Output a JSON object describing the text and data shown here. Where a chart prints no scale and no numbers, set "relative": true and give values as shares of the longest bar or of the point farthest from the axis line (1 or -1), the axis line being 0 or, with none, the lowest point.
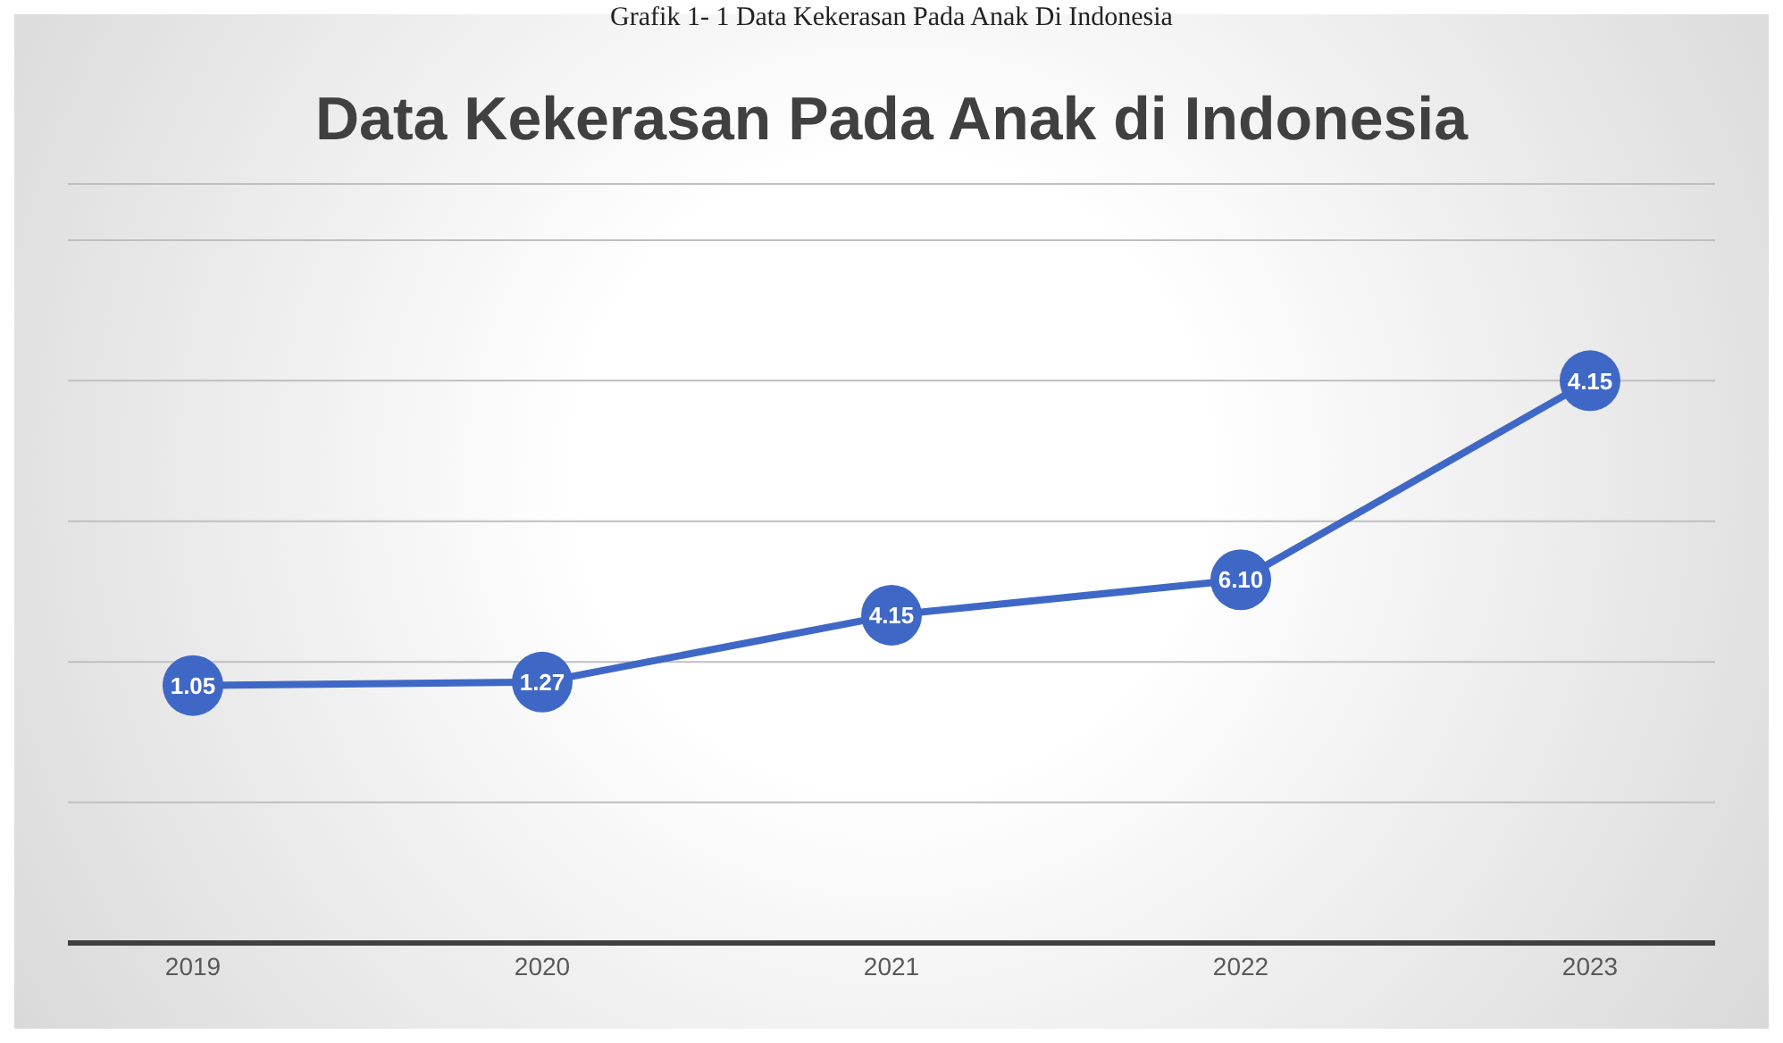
{
  "chart_data": {
    "type": "line",
    "title": "Data Kekerasan Pada Anak di Indonesia",
    "annotations": [
      "Grafik 1- 1 Data Kekerasan Pada Anak Di Indonesia",
      {
        "text": "1.05",
        "x": "2019",
        "y": 0.458
      },
      {
        "text": "1.27",
        "x": "2020",
        "y": 0.464
      },
      {
        "text": "4.15",
        "x": "2021",
        "y": 0.583
      },
      {
        "text": "6.10",
        "x": "2022",
        "y": 0.646
      },
      {
        "text": "4.15",
        "x": "2023",
        "y": 1
      }
    ],
    "categories": [
      "2019",
      "2020",
      "2021",
      "2022",
      "2023"
    ],
    "relative": true,
    "series": [
      {
        "color": "#3f68c6",
        "values": [
          0.458,
          0.464,
          0.583,
          0.646,
          1
        ]
      }
    ],
    "marker": "circle",
    "line_style": "solid",
    "grid": "y",
    "legend": false
  }
}
